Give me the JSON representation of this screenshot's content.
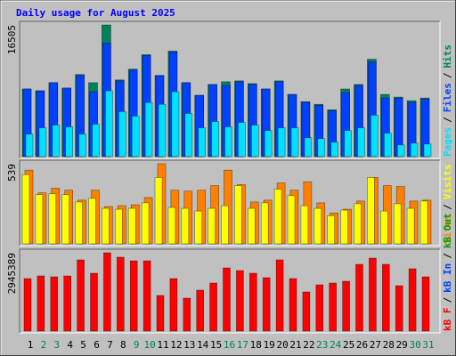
{
  "title": "Daily usage for August 2025",
  "legend_separator": "/",
  "chart_data": [
    {
      "type": "bar",
      "ylim": [
        0,
        16505
      ],
      "yticks": [
        16505
      ],
      "series": [
        {
          "name": "Pages",
          "color": "#00e0ff",
          "values": [
            2826,
            3618,
            3957,
            3731,
            2826,
            4070,
            8253,
            5653,
            5087,
            6783,
            6557,
            8140,
            5426,
            3618,
            4409,
            3731,
            4296,
            3957,
            3278,
            3618,
            3618,
            2374,
            2261,
            1809,
            3278,
            3618,
            5200,
            2939,
            1470,
            1696,
            1583
          ]
        },
        {
          "name": "Files",
          "color": "#0040ff",
          "values": [
            8479,
            8253,
            9270,
            8592,
            10174,
            8140,
            14244,
            9496,
            10853,
            12662,
            10174,
            13114,
            9270,
            7687,
            9044,
            8931,
            9383,
            9044,
            8479,
            9383,
            7800,
            6783,
            6444,
            5766,
            8027,
            8931,
            11870,
            7348,
            7348,
            6783,
            7235
          ]
        },
        {
          "name": "Hits",
          "color": "#00805c",
          "values": [
            8479,
            8253,
            9270,
            8592,
            10287,
            9270,
            16505,
            9609,
            10966,
            12775,
            10174,
            13227,
            9270,
            7687,
            9044,
            9383,
            9496,
            9157,
            8479,
            9496,
            7800,
            6896,
            6557,
            5879,
            8479,
            9044,
            12209,
            7800,
            7461,
            7009,
            7348
          ]
        }
      ]
    },
    {
      "type": "bar",
      "ylim": [
        0,
        539
      ],
      "yticks": [
        539
      ],
      "series": [
        {
          "name": "Sites",
          "color": "#ff8000",
          "values": [
            496,
            343,
            374,
            361,
            294,
            361,
            251,
            257,
            263,
            312,
            539,
            361,
            355,
            361,
            392,
            496,
            398,
            282,
            294,
            410,
            361,
            417,
            276,
            208,
            233,
            288,
            447,
            392,
            386,
            288,
            294
          ]
        },
        {
          "name": "Visits",
          "color": "#ffff00",
          "values": [
            466,
            331,
            337,
            331,
            282,
            306,
            239,
            233,
            239,
            276,
            447,
            245,
            239,
            221,
            239,
            257,
            392,
            239,
            276,
            368,
            325,
            257,
            239,
            190,
            227,
            270,
            447,
            221,
            270,
            239,
            288
          ]
        }
      ]
    },
    {
      "type": "bar",
      "ylim": [
        0,
        2945389
      ],
      "yticks": [
        2945389
      ],
      "categories": [
        "1",
        "2",
        "3",
        "4",
        "5",
        "6",
        "7",
        "8",
        "9",
        "10",
        "11",
        "12",
        "13",
        "14",
        "15",
        "16",
        "17",
        "18",
        "19",
        "20",
        "21",
        "22",
        "23",
        "24",
        "25",
        "26",
        "27",
        "28",
        "29",
        "30",
        "31"
      ],
      "category_colors": [
        "#000000",
        "#008060",
        "#008060",
        "#000000",
        "#000000",
        "#000000",
        "#000000",
        "#000000",
        "#008060",
        "#008060",
        "#000000",
        "#000000",
        "#000000",
        "#000000",
        "#000000",
        "#008060",
        "#008060",
        "#000000",
        "#000000",
        "#000000",
        "#000000",
        "#000000",
        "#008060",
        "#008060",
        "#000000",
        "#000000",
        "#000000",
        "#000000",
        "#000000",
        "#008060",
        "#008060"
      ],
      "series": [
        {
          "name": "kB F",
          "color": "#ff0000",
          "values": [
            1974730,
            2075140,
            2041670,
            2075140,
            2677600,
            2175550,
            2945389,
            2778010,
            2644130,
            2644130,
            1338800,
            1974730,
            1238390,
            1539620,
            1807380,
            2376370,
            2275960,
            2175550,
            2008200,
            2677600,
            1974730,
            1472680,
            1740440,
            1807380,
            1874320,
            2510250,
            2744540,
            2510250,
            1706970,
            2342900,
            2041670
          ]
        },
        {
          "name": "kB In",
          "color": "#0040ff"
        },
        {
          "name": "kB Out",
          "color": "#00a000"
        }
      ]
    }
  ]
}
